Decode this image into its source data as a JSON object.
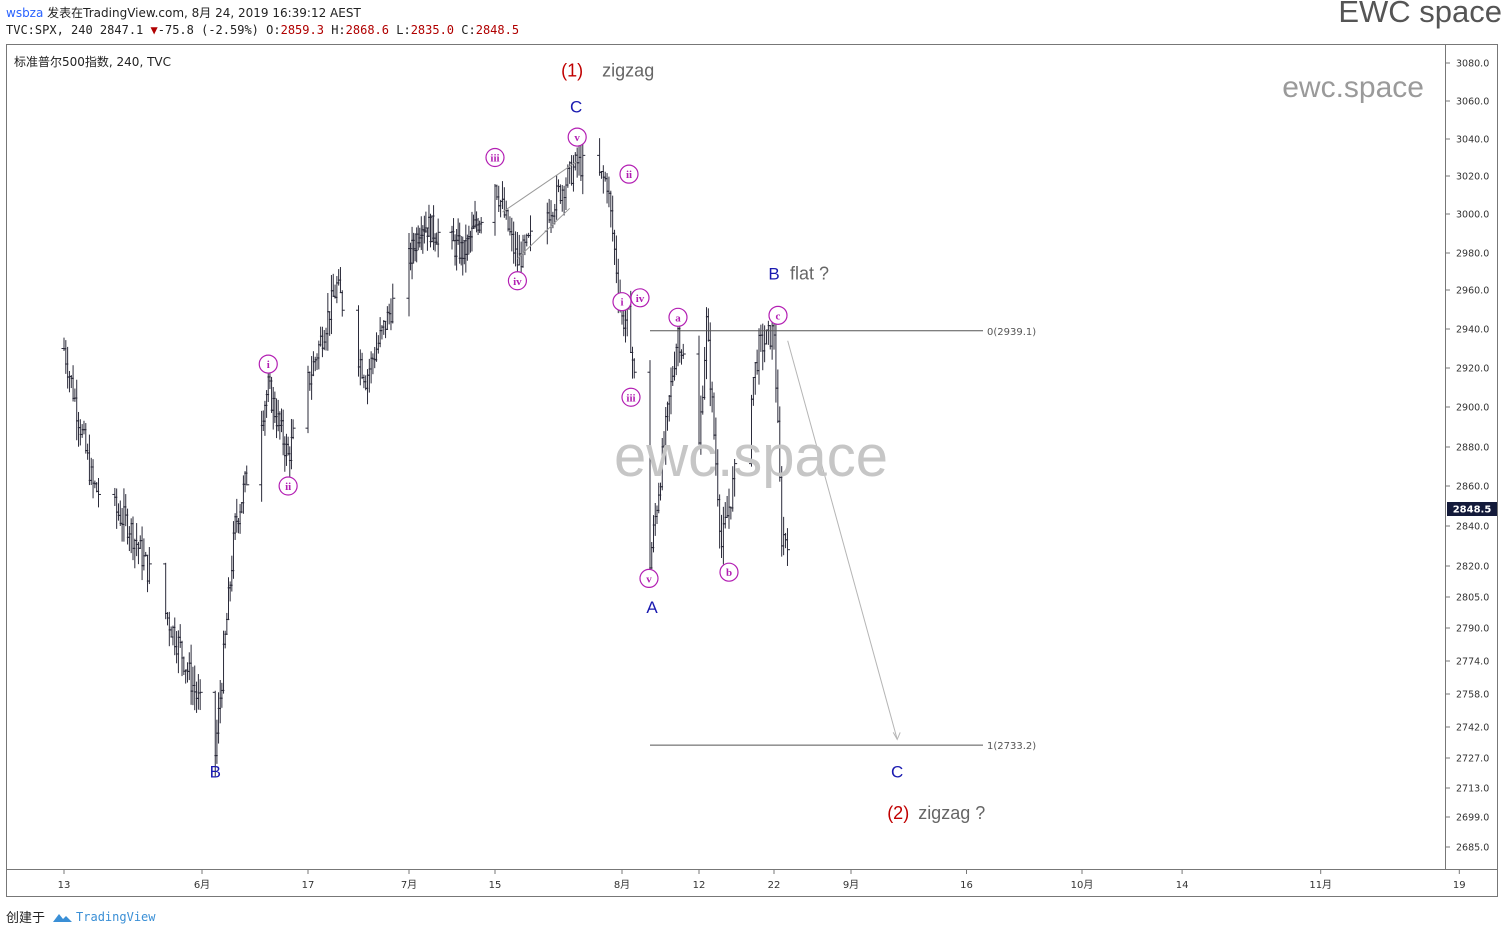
{
  "header": {
    "user": "wsbza",
    "published": "发表在TradingView.com, 8月 24, 2019 16:39:12 AEST",
    "symbol_line_prefix": "TVC:SPX, 240 2847.1",
    "change_arrow": "▼",
    "change": "-75.8 (-2.59%)",
    "ohlc_o_label": "O:",
    "ohlc_o": "2859.3",
    "ohlc_h_label": "H:",
    "ohlc_h": "2868.6",
    "ohlc_l_label": "L:",
    "ohlc_l": "2835.0",
    "ohlc_c_label": "C:",
    "ohlc_c": "2848.5"
  },
  "brand": {
    "top": "EWC space",
    "corner": "ewc.space",
    "watermark": "ewc.space"
  },
  "legend": "标准普尔500指数, 240, TVC",
  "footer": {
    "created_by": "创建于",
    "platform": "TradingView"
  },
  "colors": {
    "wave_minor": "#b31fb3",
    "wave_major": "#1a1ab0",
    "wave_primary": "#c00000",
    "bars": "#2b2b3a",
    "current_price_bg": "#131a3a"
  },
  "chart_data": {
    "type": "ohlc",
    "title": "标准普尔500指数, 240, TVC",
    "xlabel": "",
    "ylabel": "",
    "x_ticks": [
      "13",
      "6月",
      "17",
      "7月",
      "15",
      "8月",
      "12",
      "22",
      "9月",
      "16",
      "10月",
      "14",
      "11月",
      "19"
    ],
    "y_ticks": [
      3080.0,
      3060.0,
      3040.0,
      3020.0,
      3000.0,
      2980.0,
      2960.0,
      2940.0,
      2920.0,
      2900.0,
      2880.0,
      2860.0,
      2840.0,
      2820.0,
      2805.0,
      2790.0,
      2774.0,
      2758.0,
      2742.0,
      2727.0,
      2713.0,
      2699.0,
      2685.0
    ],
    "y_tick_labels": [
      "3080.0",
      "3060.0",
      "3040.0",
      "3020.0",
      "3000.0",
      "2980.0",
      "2960.0",
      "2940.0",
      "2920.0",
      "2900.0",
      "2880.0",
      "2860.0",
      "2840.0",
      "2820.0",
      "2805.0",
      "2790.0",
      "2774.0",
      "2758.0",
      "2742.0",
      "2727.0",
      "2713.0",
      "2699.0",
      "2685.0"
    ],
    "current_price": 2848.5,
    "current_price_label": "2848.5",
    "key_points": [
      {
        "date": "2019-05-13",
        "price": 2930
      },
      {
        "date": "2019-05-17",
        "price": 2860
      },
      {
        "date": "2019-05-22",
        "price": 2840
      },
      {
        "date": "2019-05-29",
        "price": 2780
      },
      {
        "date": "2019-06-03",
        "price": 2729
      },
      {
        "date": "2019-06-06",
        "price": 2840
      },
      {
        "date": "2019-06-11",
        "price": 2910
      },
      {
        "date": "2019-06-14",
        "price": 2875
      },
      {
        "date": "2019-06-21",
        "price": 2962
      },
      {
        "date": "2019-06-25",
        "price": 2915
      },
      {
        "date": "2019-07-03",
        "price": 2996
      },
      {
        "date": "2019-07-10",
        "price": 2980
      },
      {
        "date": "2019-07-15",
        "price": 3017
      },
      {
        "date": "2019-07-18",
        "price": 2975
      },
      {
        "date": "2019-07-26",
        "price": 3027
      },
      {
        "date": "2019-07-30",
        "price": 3017
      },
      {
        "date": "2019-08-01",
        "price": 2945
      },
      {
        "date": "2019-08-02",
        "price": 2945
      },
      {
        "date": "2019-08-05",
        "price": 2822
      },
      {
        "date": "2019-08-09",
        "price": 2940
      },
      {
        "date": "2019-08-12",
        "price": 2880
      },
      {
        "date": "2019-08-13",
        "price": 2943
      },
      {
        "date": "2019-08-15",
        "price": 2830
      },
      {
        "date": "2019-08-20",
        "price": 2930
      },
      {
        "date": "2019-08-22",
        "price": 2939
      },
      {
        "date": "2019-08-23",
        "price": 2835
      }
    ],
    "fib_levels": [
      {
        "ratio": "0",
        "label": "0(2939.1)",
        "price": 2939.1
      },
      {
        "ratio": "1",
        "label": "1(2733.2)",
        "price": 2733.2
      }
    ],
    "wave_labels": {
      "minor": [
        "i",
        "ii",
        "iii",
        "iv",
        "v",
        "i",
        "ii",
        "iii",
        "iv",
        "v",
        "a",
        "b",
        "c"
      ],
      "intermediate": [
        "B",
        "C",
        "A",
        "B",
        "C"
      ],
      "primary": [
        "(1)",
        "(2)"
      ],
      "texts": [
        "zigzag",
        "flat ?",
        "zigzag ?"
      ]
    }
  }
}
